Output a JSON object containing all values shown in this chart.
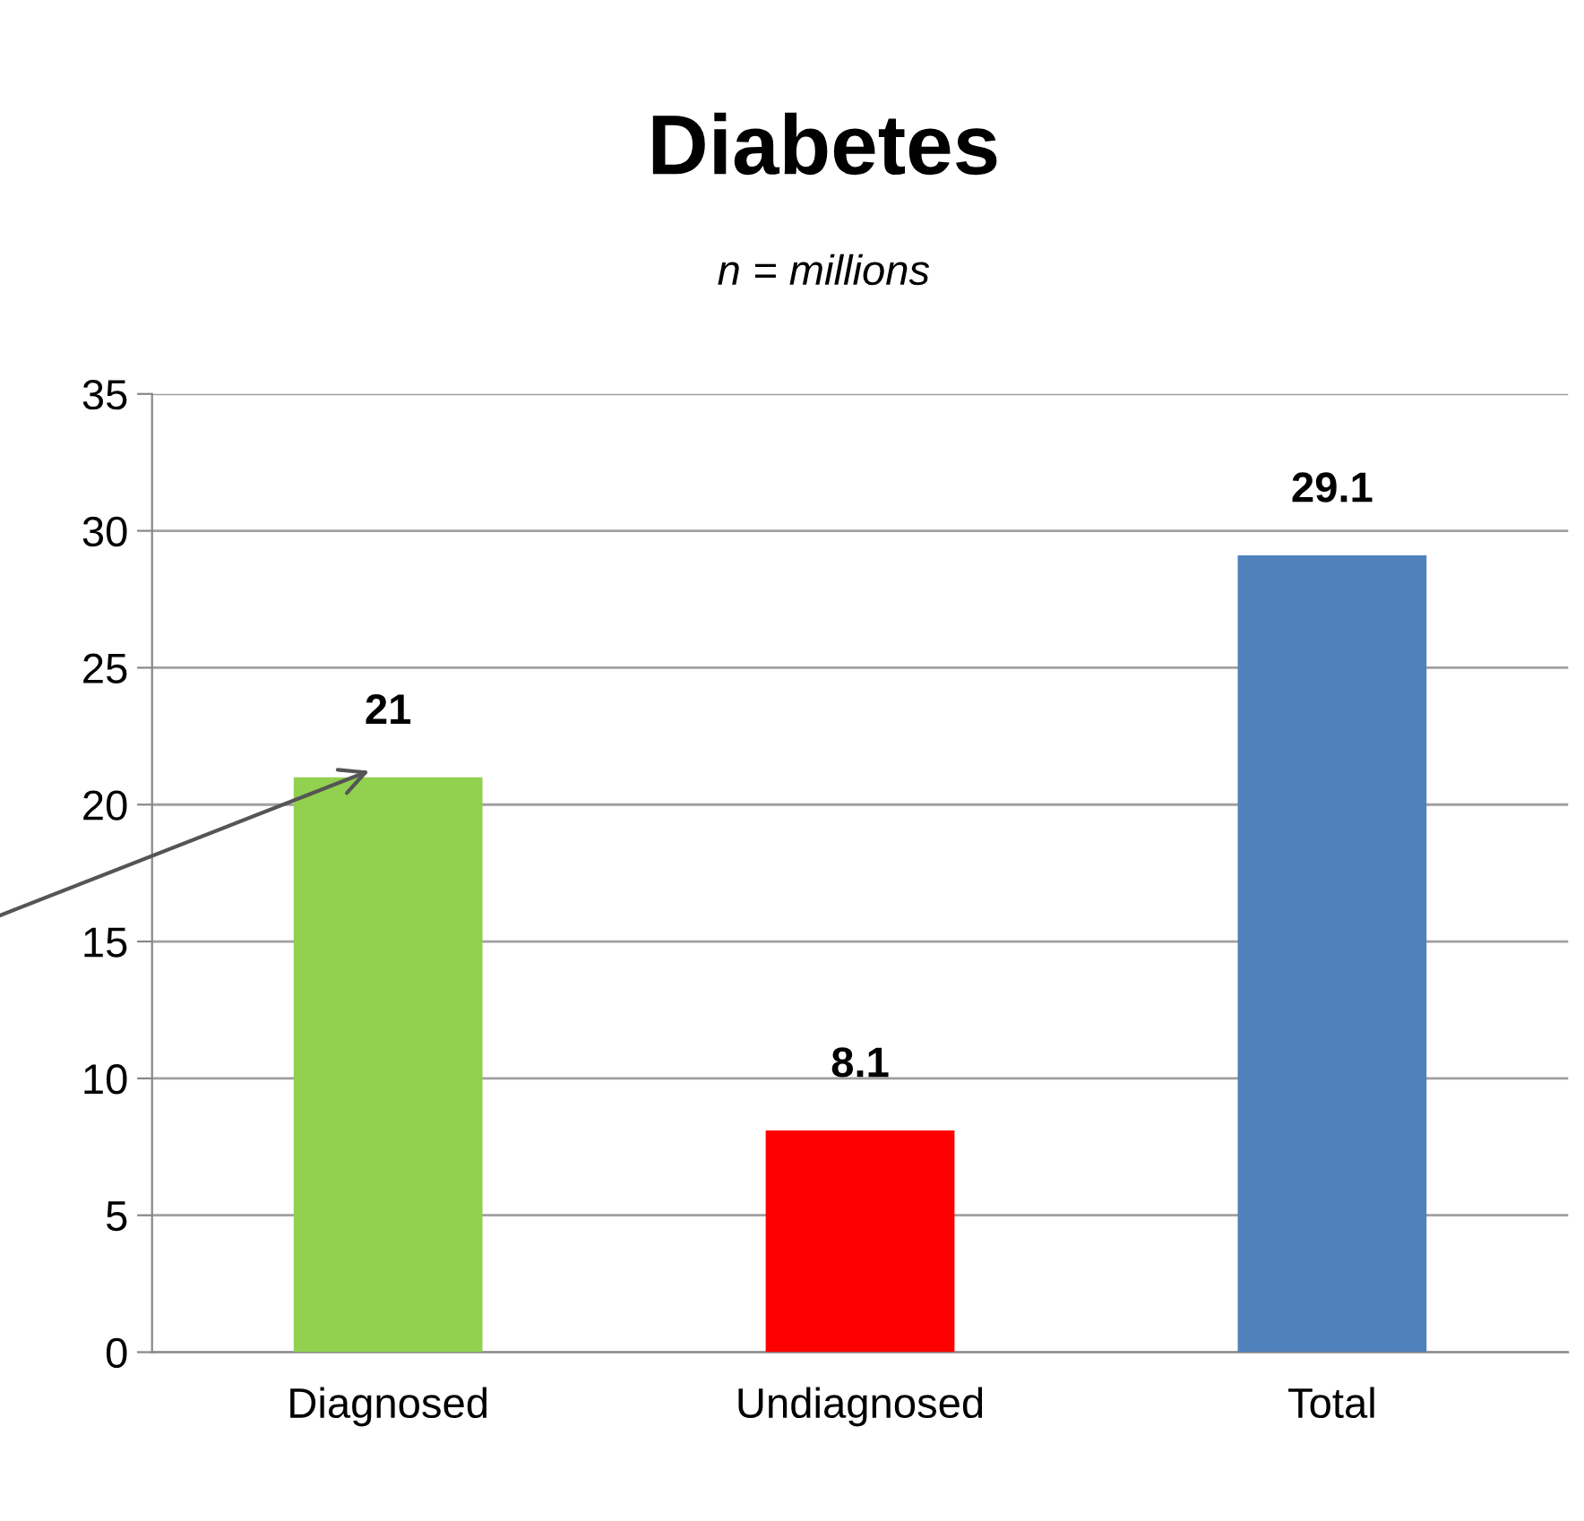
{
  "chart_data": {
    "type": "bar",
    "title": "Diabetes",
    "subtitle": "n = millions",
    "categories": [
      "Diagnosed",
      "Undiagnosed",
      "Total"
    ],
    "values": [
      21,
      8.1,
      29.1
    ],
    "colors": [
      "#92d050",
      "#ff0000",
      "#4f81bd"
    ],
    "ylim": [
      0,
      35
    ],
    "yticks": [
      0,
      5,
      10,
      15,
      20,
      25,
      30,
      35
    ],
    "grid": "y",
    "data_labels": true
  }
}
